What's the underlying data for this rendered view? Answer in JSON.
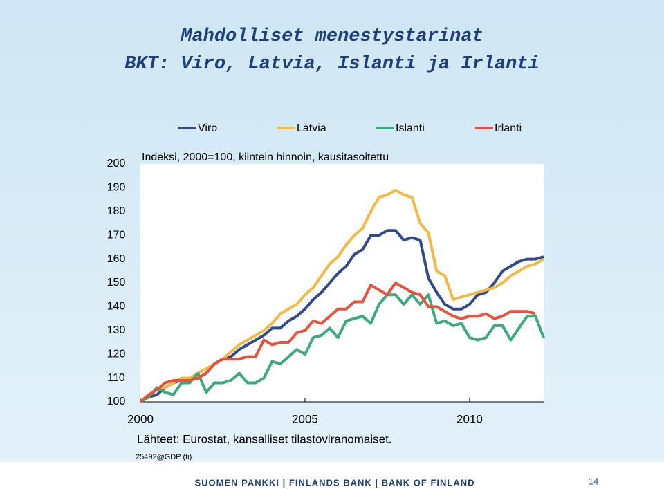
{
  "chart_data": {
    "type": "line",
    "title": "Mahdolliset menestystarinat",
    "subtitle": "BKT: Viro, Latvia, Islanti ja Irlanti",
    "annotation": "Indeksi, 2000=100, kiintein hinnoin, kausitasoitettu",
    "source": "Lähteet: Eurostat, kansalliset tilastoviranomaiset.",
    "code": "25492@GDP (fi)",
    "x": [
      2000,
      2000.25,
      2000.5,
      2000.75,
      2001,
      2001.25,
      2001.5,
      2001.75,
      2002,
      2002.25,
      2002.5,
      2002.75,
      2003,
      2003.25,
      2003.5,
      2003.75,
      2004,
      2004.25,
      2004.5,
      2004.75,
      2005,
      2005.25,
      2005.5,
      2005.75,
      2006,
      2006.25,
      2006.5,
      2006.75,
      2007,
      2007.25,
      2007.5,
      2007.75,
      2008,
      2008.25,
      2008.5,
      2008.75,
      2009,
      2009.25,
      2009.5,
      2009.75,
      2010,
      2010.25,
      2010.5,
      2010.75,
      2011,
      2011.25,
      2011.5,
      2011.75,
      2012,
      2012.25
    ],
    "series": [
      {
        "name": "Viro",
        "color": "#2f4b8c",
        "values": [
          100,
          102,
          103,
          106,
          108,
          109,
          109,
          110,
          112,
          116,
          118,
          119,
          122,
          124,
          126,
          128,
          131,
          131,
          134,
          136,
          139,
          143,
          146,
          150,
          154,
          157,
          162,
          164,
          170,
          170,
          172,
          172,
          168,
          169,
          168,
          152,
          146,
          141,
          139,
          139,
          141,
          145,
          146,
          150,
          155,
          157,
          159,
          160,
          160,
          161
        ]
      },
      {
        "name": "Latvia",
        "color": "#f4b844",
        "values": [
          100,
          103,
          105,
          106,
          108,
          110,
          110,
          112,
          114,
          116,
          118,
          121,
          124,
          126,
          128,
          130,
          133,
          137,
          139,
          141,
          145,
          148,
          153,
          158,
          161,
          166,
          170,
          173,
          180,
          186,
          187,
          189,
          187,
          186,
          175,
          171,
          155,
          153,
          143,
          144,
          145,
          146,
          147,
          148,
          150,
          153,
          155,
          157,
          158,
          160
        ]
      },
      {
        "name": "Islanti",
        "color": "#3daa7e",
        "values": [
          100,
          102,
          106,
          104,
          103,
          108,
          108,
          112,
          104,
          108,
          108,
          109,
          112,
          108,
          108,
          110,
          117,
          116,
          119,
          122,
          120,
          127,
          128,
          131,
          127,
          134,
          135,
          136,
          133,
          141,
          145,
          145,
          141,
          145,
          141,
          145,
          133,
          134,
          132,
          133,
          127,
          126,
          127,
          132,
          132,
          126,
          131,
          136,
          136,
          127
        ]
      },
      {
        "name": "Irlanti",
        "color": "#e8513b",
        "values": [
          100,
          103,
          105,
          108,
          109,
          109,
          109,
          110,
          112,
          116,
          118,
          118,
          118,
          119,
          119,
          126,
          124,
          125,
          125,
          129,
          130,
          134,
          133,
          136,
          139,
          139,
          142,
          142,
          149,
          147,
          145,
          150,
          148,
          146,
          145,
          140,
          140,
          138,
          136,
          135,
          136,
          136,
          137,
          135,
          136,
          138,
          138,
          138,
          137,
          null
        ]
      }
    ],
    "xlim": [
      2000,
      2012.25
    ],
    "xticks": [
      2000,
      2005,
      2010
    ],
    "ylim": [
      100,
      200
    ],
    "yticks": [
      100,
      110,
      120,
      130,
      140,
      150,
      160,
      170,
      180,
      190,
      200
    ]
  },
  "footer": {
    "bank": "SUOMEN PANKKI | FINLANDS BANK | BANK OF FINLAND",
    "page": "14"
  }
}
